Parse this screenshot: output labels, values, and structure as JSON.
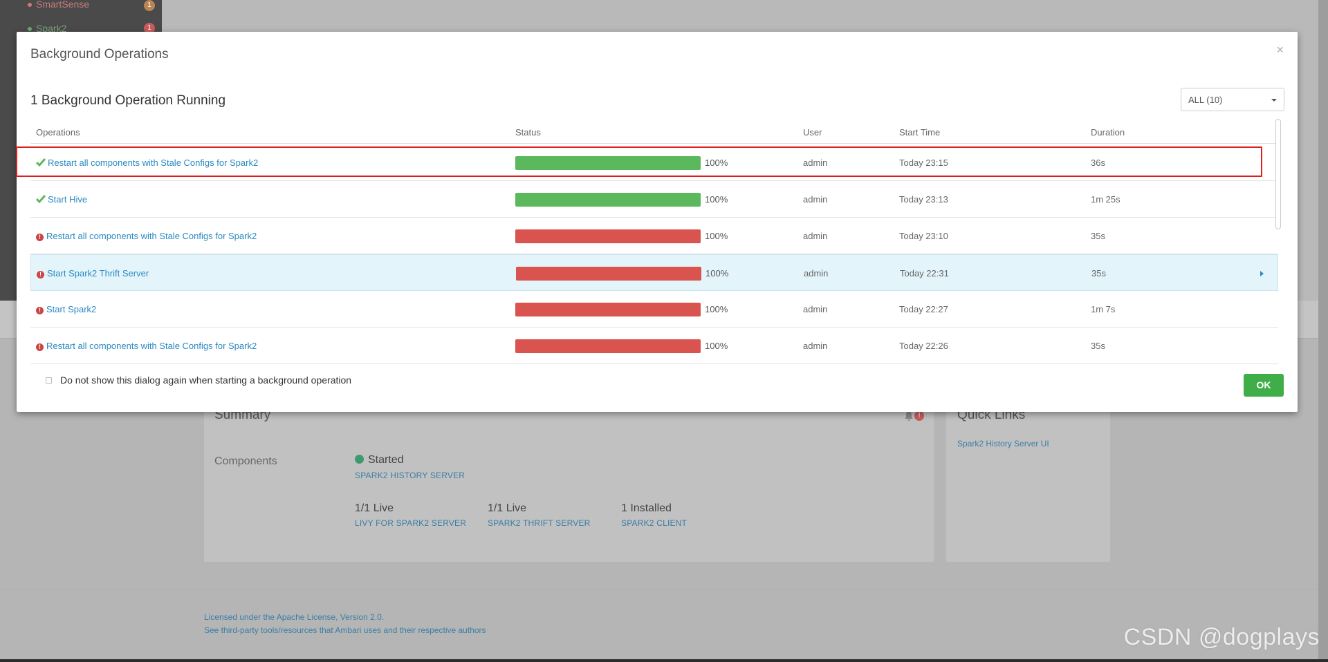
{
  "background": {
    "sidebar_items": [
      {
        "label": "SmartSense",
        "badge": "1",
        "dot_color": "#c97a7a",
        "badge_color": "#b98556"
      },
      {
        "label": "Spark2",
        "badge": "1",
        "dot_color": "#6ba86b",
        "badge_color": "#c95c5c"
      }
    ],
    "summary": {
      "title": "Summary",
      "components_label": "Components",
      "alert_count": "!",
      "started_text": "Started",
      "history_server": "SPARK2 HISTORY SERVER",
      "stats": [
        {
          "value": "1/1 Live",
          "link": "LIVY FOR SPARK2 SERVER"
        },
        {
          "value": "1/1 Live",
          "link": "SPARK2 THRIFT SERVER"
        },
        {
          "value": "1 Installed",
          "link": "SPARK2 CLIENT"
        }
      ]
    },
    "quick_links": {
      "title": "Quick Links",
      "items": [
        "Spark2 History Server UI"
      ]
    },
    "footer": {
      "license": "Licensed under the Apache License, Version 2.0.",
      "third_party": "See third-party tools/resources that Ambari uses and their respective authors"
    },
    "watermark": "CSDN @dogplays"
  },
  "modal": {
    "title": "Background Operations",
    "close_symbol": "×",
    "running_heading": "1 Background Operation Running",
    "filter": {
      "selected": "ALL (10)"
    },
    "columns": {
      "operations": "Operations",
      "status": "Status",
      "user": "User",
      "start_time": "Start Time",
      "duration": "Duration"
    },
    "rows": [
      {
        "operation": "Restart all components with Stale Configs for Spark2",
        "state": "success",
        "progress": "100%",
        "user": "admin",
        "start": "Today 23:15",
        "duration": "36s"
      },
      {
        "operation": "Start Hive",
        "state": "success",
        "progress": "100%",
        "user": "admin",
        "start": "Today 23:13",
        "duration": "1m 25s"
      },
      {
        "operation": "Restart all components with Stale Configs for Spark2",
        "state": "failed",
        "progress": "100%",
        "user": "admin",
        "start": "Today 23:10",
        "duration": "35s"
      },
      {
        "operation": "Start Spark2 Thrift Server",
        "state": "failed",
        "progress": "100%",
        "user": "admin",
        "start": "Today 22:31",
        "duration": "35s"
      },
      {
        "operation": "Start Spark2",
        "state": "failed",
        "progress": "100%",
        "user": "admin",
        "start": "Today 22:27",
        "duration": "1m 7s"
      },
      {
        "operation": "Restart all components with Stale Configs for Spark2",
        "state": "failed",
        "progress": "100%",
        "user": "admin",
        "start": "Today 22:26",
        "duration": "35s"
      }
    ],
    "dont_show_label": "Do not show this dialog again when starting a background operation",
    "ok_label": "OK",
    "colors": {
      "success": "#5cb85c",
      "failed": "#d9534f",
      "link": "#2a8ac0",
      "highlight": "#e01e1e"
    }
  }
}
